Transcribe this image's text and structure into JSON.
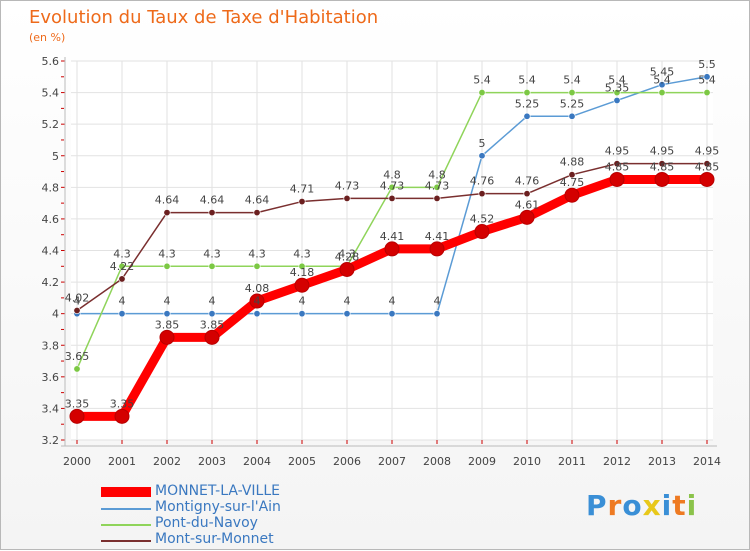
{
  "page": {
    "title": "Evolution du Taux de Taxe d'Habitation",
    "unit": "(en %)"
  },
  "chart_data": {
    "type": "line",
    "title": "Evolution du Taux de Taxe d'Habitation",
    "ylabel": "(en %)",
    "xlabel": "",
    "x": [
      "2000",
      "2001",
      "2002",
      "2003",
      "2004",
      "2005",
      "2006",
      "2007",
      "2008",
      "2009",
      "2010",
      "2011",
      "2012",
      "2013",
      "2014"
    ],
    "ylim": [
      3.2,
      5.6
    ],
    "yticks": [
      "3.2",
      "3.4",
      "3.6",
      "3.8",
      "4",
      "4.2",
      "4.4",
      "4.6",
      "4.8",
      "5",
      "5.2",
      "5.4",
      "5.6"
    ],
    "grid": true,
    "series": [
      {
        "name": "MONNET-LA-VILLE",
        "color": "#ff0000",
        "point_color": "#d40000",
        "values": [
          3.35,
          3.35,
          3.85,
          3.85,
          4.08,
          4.18,
          4.28,
          4.41,
          4.41,
          4.52,
          4.61,
          4.75,
          4.85,
          4.85,
          4.85
        ],
        "labels": [
          "3.35",
          "3.35",
          "3.85",
          "3.85",
          "4.08",
          "4.18",
          "4.28",
          "4.41",
          "4.41",
          "4.52",
          "4.61",
          "4.75",
          "4.85",
          "4.85",
          "4.85"
        ]
      },
      {
        "name": "Montigny-sur-l'Ain",
        "color": "#5b9bd5",
        "point_color": "#3a78c0",
        "values": [
          4,
          4,
          4,
          4,
          4,
          4,
          4,
          4,
          4,
          5,
          5.25,
          5.25,
          5.35,
          5.45,
          5.5
        ],
        "labels": [
          "4",
          "4",
          "4",
          "4",
          "4",
          "4",
          "4",
          "4",
          "4",
          "5",
          "5.25",
          "5.25",
          "5.35",
          "5.45",
          "5.5"
        ]
      },
      {
        "name": "Pont-du-Navoy",
        "color": "#8fd45a",
        "point_color": "#7cc844",
        "values": [
          3.65,
          4.3,
          4.3,
          4.3,
          4.3,
          4.3,
          4.3,
          4.8,
          4.8,
          5.4,
          5.4,
          5.4,
          5.4,
          5.4,
          5.4
        ],
        "labels": [
          "3.65",
          "4.3",
          "4.3",
          "4.3",
          "4.3",
          "4.3",
          "4.3",
          "4.8",
          "4.8",
          "5.4",
          "5.4",
          "5.4",
          "5.4",
          "5.4",
          "5.4"
        ]
      },
      {
        "name": "Mont-sur-Monnet",
        "color": "#7a2f2f",
        "point_color": "#6b1f1f",
        "values": [
          4.02,
          4.22,
          4.64,
          4.64,
          4.64,
          4.71,
          4.73,
          4.73,
          4.73,
          4.76,
          4.76,
          4.88,
          4.95,
          4.95,
          4.95
        ],
        "labels": [
          "4.02",
          "4.22",
          "4.64",
          "4.64",
          "4.64",
          "4.71",
          "4.73",
          "4.73",
          "4.73",
          "4.76",
          "4.76",
          "4.88",
          "4.95",
          "4.95",
          "4.95"
        ]
      }
    ]
  },
  "legend": {
    "items": [
      "MONNET-LA-VILLE",
      "Montigny-sur-l'Ain",
      "Pont-du-Navoy",
      "Mont-sur-Monnet"
    ],
    "colors": [
      "#ff0000",
      "#5b9bd5",
      "#8fd45a",
      "#7a2f2f"
    ]
  },
  "logo": {
    "text": "Proxiti",
    "letter_colors": [
      "#3a8fd6",
      "#ee7a22",
      "#3a8fd6",
      "#e8c81a",
      "#3a8fd6",
      "#ee7a22",
      "#8bc34a"
    ]
  }
}
